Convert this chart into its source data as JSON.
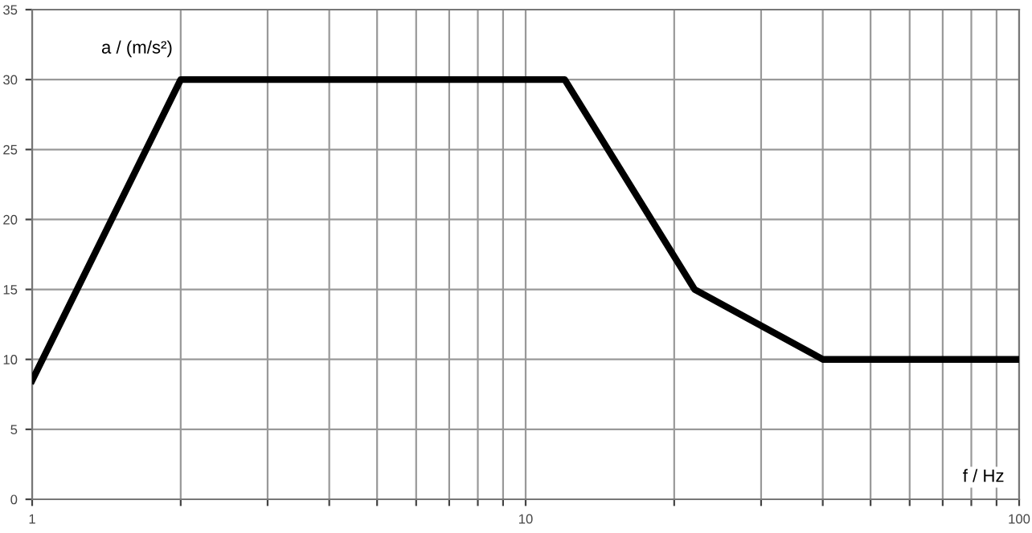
{
  "chart_data": {
    "type": "line",
    "xlabel": "f / Hz",
    "ylabel": "a / (m/s²)",
    "x": [
      1,
      2,
      12,
      22,
      40,
      100
    ],
    "series": [
      {
        "color": "#000000",
        "values": [
          8.5,
          30,
          30,
          15,
          10,
          10
        ]
      }
    ],
    "log": "x",
    "xlim": [
      1,
      100
    ],
    "ylim": [
      0,
      35
    ],
    "xticks": [
      1,
      {
        "value": 2,
        "label": null
      },
      {
        "value": 3,
        "label": null
      },
      {
        "value": 4,
        "label": null
      },
      {
        "value": 5,
        "label": null
      },
      {
        "value": 6,
        "label": null
      },
      {
        "value": 7,
        "label": null
      },
      {
        "value": 8,
        "label": null
      },
      {
        "value": 9,
        "label": null
      },
      10,
      {
        "value": 20,
        "label": null
      },
      {
        "value": 30,
        "label": null
      },
      {
        "value": 40,
        "label": null
      },
      {
        "value": 50,
        "label": null
      },
      {
        "value": 60,
        "label": null
      },
      {
        "value": 70,
        "label": null
      },
      {
        "value": 80,
        "label": null
      },
      {
        "value": 90,
        "label": null
      },
      100
    ],
    "yticks": [
      0,
      5,
      10,
      15,
      20,
      25,
      30,
      35
    ],
    "grid": true,
    "marker": "none",
    "line_style": "solid"
  }
}
